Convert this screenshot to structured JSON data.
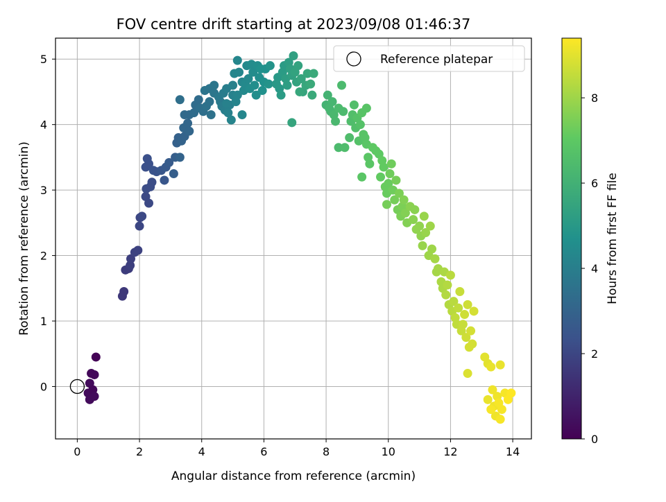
{
  "chart_data": {
    "type": "scatter",
    "title": "FOV centre drift starting at 2023/09/08 01:46:37",
    "xlabel": "Angular distance from reference (arcmin)",
    "ylabel": "Rotation from reference (arcmin)",
    "xlim": [
      -0.7,
      14.6
    ],
    "ylim": [
      -0.8,
      5.32
    ],
    "xticks": [
      0,
      2,
      4,
      6,
      8,
      10,
      12,
      14
    ],
    "yticks": [
      0,
      1,
      2,
      3,
      4,
      5
    ],
    "grid": true,
    "legend": {
      "placement": "top-right",
      "entries": [
        "Reference platepar"
      ]
    },
    "reference_point": {
      "x": 0,
      "y": 0,
      "label": "Reference platepar"
    },
    "colorbar": {
      "label": "Hours from first FF file",
      "range": [
        0,
        9.4
      ],
      "ticks": [
        0,
        2,
        4,
        6,
        8
      ],
      "colormap": "viridis"
    },
    "points": [
      [
        0.6,
        0.45,
        0.1
      ],
      [
        0.45,
        0.2,
        0.2
      ],
      [
        0.55,
        0.18,
        0.2
      ],
      [
        0.4,
        0.05,
        0.3
      ],
      [
        0.35,
        -0.1,
        0.3
      ],
      [
        0.5,
        -0.05,
        0.2
      ],
      [
        0.4,
        -0.2,
        0.3
      ],
      [
        0.55,
        -0.15,
        0.3
      ],
      [
        1.5,
        1.45,
        1.6
      ],
      [
        1.45,
        1.38,
        1.6
      ],
      [
        1.55,
        1.78,
        1.7
      ],
      [
        1.65,
        1.8,
        1.7
      ],
      [
        1.7,
        1.85,
        1.8
      ],
      [
        1.72,
        1.95,
        1.8
      ],
      [
        1.85,
        2.05,
        1.9
      ],
      [
        1.95,
        2.08,
        1.9
      ],
      [
        2.0,
        2.45,
        2.0
      ],
      [
        2.02,
        2.58,
        2.0
      ],
      [
        2.08,
        2.6,
        2.1
      ],
      [
        2.2,
        2.9,
        2.1
      ],
      [
        2.3,
        2.8,
        2.1
      ],
      [
        2.22,
        3.02,
        2.2
      ],
      [
        2.35,
        3.05,
        2.2
      ],
      [
        2.4,
        3.12,
        2.2
      ],
      [
        2.2,
        3.35,
        2.3
      ],
      [
        2.3,
        3.4,
        2.3
      ],
      [
        2.25,
        3.48,
        2.3
      ],
      [
        2.45,
        3.3,
        2.4
      ],
      [
        2.55,
        3.28,
        2.4
      ],
      [
        2.7,
        3.3,
        2.5
      ],
      [
        2.8,
        3.15,
        2.5
      ],
      [
        2.85,
        3.35,
        2.6
      ],
      [
        2.95,
        3.42,
        2.7
      ],
      [
        3.1,
        3.25,
        2.8
      ],
      [
        3.15,
        3.5,
        2.8
      ],
      [
        3.2,
        3.72,
        2.9
      ],
      [
        3.25,
        3.8,
        2.9
      ],
      [
        3.35,
        3.75,
        3.0
      ],
      [
        3.3,
        3.5,
        3.0
      ],
      [
        3.45,
        3.82,
        3.0
      ],
      [
        3.42,
        3.95,
        3.1
      ],
      [
        3.5,
        3.95,
        3.1
      ],
      [
        3.55,
        4.02,
        3.1
      ],
      [
        3.6,
        3.9,
        3.1
      ],
      [
        3.45,
        4.15,
        3.2
      ],
      [
        3.6,
        4.15,
        3.2
      ],
      [
        3.75,
        4.18,
        3.3
      ],
      [
        3.8,
        4.3,
        3.3
      ],
      [
        3.9,
        4.38,
        3.3
      ],
      [
        3.95,
        4.25,
        3.4
      ],
      [
        3.3,
        4.38,
        3.4
      ],
      [
        4.05,
        4.2,
        3.4
      ],
      [
        4.15,
        4.28,
        3.5
      ],
      [
        4.25,
        4.35,
        3.5
      ],
      [
        4.3,
        4.15,
        3.5
      ],
      [
        4.1,
        4.52,
        3.6
      ],
      [
        4.25,
        4.55,
        3.6
      ],
      [
        4.4,
        4.6,
        3.7
      ],
      [
        4.4,
        4.48,
        3.7
      ],
      [
        4.55,
        4.42,
        3.8
      ],
      [
        4.6,
        4.35,
        3.8
      ],
      [
        4.7,
        4.48,
        3.9
      ],
      [
        4.65,
        4.28,
        3.9
      ],
      [
        4.75,
        4.22,
        4.0
      ],
      [
        4.8,
        4.55,
        4.0
      ],
      [
        4.9,
        4.3,
        4.0
      ],
      [
        5.0,
        4.45,
        4.1
      ],
      [
        4.8,
        4.32,
        4.1
      ],
      [
        4.85,
        4.18,
        4.1
      ],
      [
        4.95,
        4.07,
        4.2
      ],
      [
        5.0,
        4.6,
        4.1
      ],
      [
        5.1,
        4.35,
        4.2
      ],
      [
        5.15,
        4.45,
        4.2
      ],
      [
        5.05,
        4.78,
        4.3
      ],
      [
        5.15,
        4.98,
        4.3
      ],
      [
        5.2,
        4.8,
        4.3
      ],
      [
        5.3,
        4.65,
        4.3
      ],
      [
        5.3,
        4.15,
        4.3
      ],
      [
        5.35,
        4.52,
        4.4
      ],
      [
        5.4,
        4.62,
        4.4
      ],
      [
        5.45,
        4.9,
        4.4
      ],
      [
        5.5,
        4.7,
        4.4
      ],
      [
        5.55,
        4.55,
        4.5
      ],
      [
        5.6,
        4.92,
        4.5
      ],
      [
        5.65,
        4.8,
        4.5
      ],
      [
        5.7,
        4.6,
        4.6
      ],
      [
        5.75,
        4.45,
        4.6
      ],
      [
        5.8,
        4.9,
        4.6
      ],
      [
        5.85,
        4.72,
        4.6
      ],
      [
        5.9,
        4.85,
        4.7
      ],
      [
        6.0,
        4.65,
        4.7
      ],
      [
        6.05,
        4.85,
        4.7
      ],
      [
        6.15,
        4.62,
        4.8
      ],
      [
        6.2,
        4.9,
        4.8
      ],
      [
        5.95,
        4.52,
        4.7
      ],
      [
        6.4,
        4.62,
        5.0
      ],
      [
        6.45,
        4.72,
        5.0
      ],
      [
        6.5,
        4.55,
        5.0
      ],
      [
        6.55,
        4.45,
        5.1
      ],
      [
        6.6,
        4.8,
        5.1
      ],
      [
        6.65,
        4.9,
        5.1
      ],
      [
        6.7,
        4.7,
        5.2
      ],
      [
        6.75,
        4.6,
        5.2
      ],
      [
        6.8,
        4.95,
        5.2
      ],
      [
        6.85,
        4.85,
        5.3
      ],
      [
        6.9,
        4.75,
        5.3
      ],
      [
        6.95,
        5.05,
        5.3
      ],
      [
        7.0,
        4.8,
        5.4
      ],
      [
        7.05,
        4.65,
        5.4
      ],
      [
        7.1,
        4.9,
        5.4
      ],
      [
        7.2,
        4.7,
        5.5
      ],
      [
        7.25,
        4.5,
        5.5
      ],
      [
        6.9,
        4.03,
        5.5
      ],
      [
        7.35,
        4.6,
        5.6
      ],
      [
        7.4,
        4.78,
        5.6
      ],
      [
        7.5,
        4.62,
        5.7
      ],
      [
        7.55,
        4.45,
        5.7
      ],
      [
        7.6,
        4.78,
        5.7
      ],
      [
        7.15,
        4.5,
        5.6
      ],
      [
        8.0,
        4.3,
        6.1
      ],
      [
        8.05,
        4.45,
        6.1
      ],
      [
        8.1,
        4.25,
        6.2
      ],
      [
        8.15,
        4.2,
        6.2
      ],
      [
        8.2,
        4.35,
        6.2
      ],
      [
        8.25,
        4.15,
        6.3
      ],
      [
        8.3,
        4.05,
        6.3
      ],
      [
        8.4,
        4.25,
        6.4
      ],
      [
        8.5,
        4.6,
        6.4
      ],
      [
        8.55,
        4.2,
        6.4
      ],
      [
        8.4,
        3.65,
        6.4
      ],
      [
        8.6,
        3.65,
        6.5
      ],
      [
        8.75,
        3.8,
        6.5
      ],
      [
        8.8,
        4.05,
        6.5
      ],
      [
        8.85,
        4.15,
        6.6
      ],
      [
        8.9,
        4.3,
        6.6
      ],
      [
        8.95,
        3.95,
        6.6
      ],
      [
        9.0,
        4.1,
        6.7
      ],
      [
        9.05,
        3.75,
        6.7
      ],
      [
        9.1,
        4.0,
        6.7
      ],
      [
        9.2,
        3.85,
        6.8
      ],
      [
        9.15,
        4.18,
        6.8
      ],
      [
        9.3,
        4.25,
        6.8
      ],
      [
        9.25,
        3.8,
        6.8
      ],
      [
        9.3,
        3.7,
        6.9
      ],
      [
        9.35,
        3.5,
        6.9
      ],
      [
        9.4,
        3.4,
        6.9
      ],
      [
        9.15,
        3.2,
        6.9
      ],
      [
        9.5,
        3.65,
        7.0
      ],
      [
        9.6,
        3.6,
        7.0
      ],
      [
        9.7,
        3.55,
        7.0
      ],
      [
        9.8,
        3.45,
        7.1
      ],
      [
        9.75,
        3.2,
        7.1
      ],
      [
        9.85,
        3.35,
        7.1
      ],
      [
        9.9,
        3.05,
        7.2
      ],
      [
        9.95,
        2.95,
        7.2
      ],
      [
        10.0,
        3.1,
        7.2
      ],
      [
        10.05,
        3.25,
        7.3
      ],
      [
        10.1,
        3.4,
        7.3
      ],
      [
        10.15,
        3.0,
        7.3
      ],
      [
        10.2,
        2.85,
        7.4
      ],
      [
        10.25,
        3.15,
        7.4
      ],
      [
        10.3,
        2.7,
        7.4
      ],
      [
        10.35,
        2.95,
        7.5
      ],
      [
        10.4,
        2.6,
        7.5
      ],
      [
        9.95,
        2.78,
        7.4
      ],
      [
        10.45,
        2.75,
        7.5
      ],
      [
        10.5,
        2.85,
        7.6
      ],
      [
        10.55,
        2.65,
        7.6
      ],
      [
        10.6,
        2.5,
        7.6
      ],
      [
        10.7,
        2.75,
        7.7
      ],
      [
        10.8,
        2.55,
        7.7
      ],
      [
        10.85,
        2.7,
        7.7
      ],
      [
        10.9,
        2.4,
        7.8
      ],
      [
        11.0,
        2.45,
        7.8
      ],
      [
        11.05,
        2.3,
        7.8
      ],
      [
        11.1,
        2.15,
        7.9
      ],
      [
        11.15,
        2.6,
        7.9
      ],
      [
        11.2,
        2.35,
        7.9
      ],
      [
        11.3,
        2.0,
        8.0
      ],
      [
        11.35,
        2.45,
        8.0
      ],
      [
        11.4,
        2.1,
        8.0
      ],
      [
        11.5,
        1.95,
        8.1
      ],
      [
        11.55,
        1.75,
        8.1
      ],
      [
        11.6,
        1.8,
        8.1
      ],
      [
        11.7,
        1.6,
        8.2
      ],
      [
        11.75,
        1.5,
        8.2
      ],
      [
        11.8,
        1.75,
        8.2
      ],
      [
        11.85,
        1.4,
        8.3
      ],
      [
        11.9,
        1.55,
        8.3
      ],
      [
        11.95,
        1.25,
        8.3
      ],
      [
        12.0,
        1.7,
        8.4
      ],
      [
        12.05,
        1.15,
        8.4
      ],
      [
        12.1,
        1.3,
        8.4
      ],
      [
        12.15,
        1.05,
        8.5
      ],
      [
        12.2,
        0.95,
        8.5
      ],
      [
        12.25,
        1.2,
        8.5
      ],
      [
        12.3,
        1.45,
        8.6
      ],
      [
        12.35,
        0.85,
        8.6
      ],
      [
        12.4,
        0.95,
        8.6
      ],
      [
        12.45,
        1.1,
        8.7
      ],
      [
        12.5,
        0.75,
        8.7
      ],
      [
        12.55,
        1.25,
        8.7
      ],
      [
        12.6,
        0.6,
        8.8
      ],
      [
        12.65,
        0.85,
        8.8
      ],
      [
        12.7,
        0.65,
        8.8
      ],
      [
        12.55,
        0.2,
        8.9
      ],
      [
        12.75,
        1.15,
        8.8
      ],
      [
        13.1,
        0.45,
        9.0
      ],
      [
        13.2,
        0.35,
        9.0
      ],
      [
        13.3,
        0.3,
        9.1
      ],
      [
        13.6,
        0.33,
        9.1
      ],
      [
        13.2,
        -0.2,
        9.1
      ],
      [
        13.35,
        -0.05,
        9.2
      ],
      [
        13.4,
        -0.3,
        9.2
      ],
      [
        13.45,
        -0.45,
        9.2
      ],
      [
        13.5,
        -0.15,
        9.2
      ],
      [
        13.55,
        -0.25,
        9.3
      ],
      [
        13.6,
        -0.5,
        9.3
      ],
      [
        13.65,
        -0.35,
        9.3
      ],
      [
        13.75,
        -0.1,
        9.3
      ],
      [
        13.85,
        -0.2,
        9.4
      ],
      [
        13.95,
        -0.1,
        9.4
      ],
      [
        13.3,
        -0.35,
        9.3
      ]
    ]
  }
}
